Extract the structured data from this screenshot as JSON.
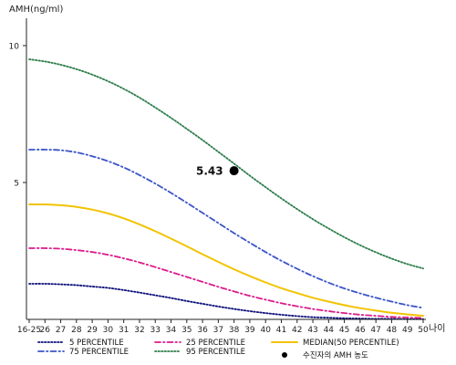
{
  "chart_data": {
    "type": "line",
    "ylabel": "AMH(ng/ml)",
    "xlabel": "나이",
    "ylim": [
      0,
      11
    ],
    "yticks": [
      5,
      10
    ],
    "categories": [
      "16-25",
      "26",
      "27",
      "28",
      "29",
      "30",
      "31",
      "32",
      "33",
      "34",
      "35",
      "36",
      "37",
      "38",
      "39",
      "40",
      "41",
      "42",
      "43",
      "44",
      "45",
      "46",
      "47",
      "48",
      "49",
      "50"
    ],
    "grid": false,
    "legend_position": "bottom",
    "series": [
      {
        "name": "5 PERCENTILE",
        "color": "#0b0f7a",
        "dash": "dotted",
        "values": [
          1.3,
          1.3,
          1.28,
          1.25,
          1.2,
          1.15,
          1.07,
          0.98,
          0.88,
          0.78,
          0.67,
          0.57,
          0.47,
          0.38,
          0.3,
          0.23,
          0.17,
          0.12,
          0.08,
          0.06,
          0.04,
          0.03,
          0.02,
          0.02,
          0.01,
          0.01
        ]
      },
      {
        "name": "75 PERCENTILE",
        "color": "#3a55c8",
        "dash": "dashdot",
        "values": [
          6.2,
          6.2,
          6.18,
          6.1,
          5.96,
          5.78,
          5.55,
          5.27,
          4.96,
          4.62,
          4.26,
          3.89,
          3.52,
          3.15,
          2.8,
          2.46,
          2.14,
          1.85,
          1.58,
          1.34,
          1.13,
          0.95,
          0.79,
          0.65,
          0.52,
          0.42
        ]
      },
      {
        "name": "25 PERCENTILE",
        "color": "#dd1a8b",
        "dash": "dashdot",
        "values": [
          2.6,
          2.6,
          2.58,
          2.53,
          2.46,
          2.36,
          2.23,
          2.08,
          1.91,
          1.73,
          1.55,
          1.37,
          1.19,
          1.02,
          0.86,
          0.72,
          0.59,
          0.48,
          0.38,
          0.3,
          0.23,
          0.17,
          0.13,
          0.09,
          0.07,
          0.05
        ]
      },
      {
        "name": "95 PERCENTILE",
        "color": "#2c7d4a",
        "dash": "dotted",
        "values": [
          9.5,
          9.42,
          9.3,
          9.14,
          8.94,
          8.7,
          8.42,
          8.1,
          7.74,
          7.36,
          6.96,
          6.55,
          6.12,
          5.69,
          5.25,
          4.83,
          4.42,
          4.03,
          3.66,
          3.32,
          3.0,
          2.71,
          2.45,
          2.22,
          2.02,
          1.86
        ]
      },
      {
        "name": "MEDIAN(50 PERCENTILE)",
        "color": "#f2c300",
        "dash": "solid",
        "values": [
          4.2,
          4.2,
          4.17,
          4.11,
          4.01,
          3.87,
          3.69,
          3.47,
          3.22,
          2.95,
          2.67,
          2.38,
          2.1,
          1.83,
          1.58,
          1.35,
          1.14,
          0.96,
          0.79,
          0.65,
          0.52,
          0.41,
          0.32,
          0.24,
          0.18,
          0.13
        ]
      }
    ],
    "point": {
      "name": "수진자의 AMH 농도",
      "label": "5.43",
      "x": "38",
      "y": 5.43,
      "color": "#000000"
    }
  }
}
